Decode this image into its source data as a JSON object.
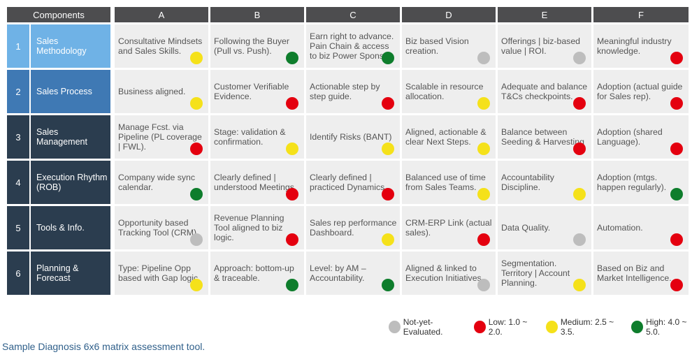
{
  "header": {
    "components_label": "Components",
    "columns": [
      "A",
      "B",
      "C",
      "D",
      "E",
      "F"
    ]
  },
  "colors": {
    "gray": "#bdbdbd",
    "red": "#e4000f",
    "yellow": "#f5e11a",
    "green": "#0e7d2c",
    "row_header_1": "#6fb2e6",
    "row_header_2": "#3f79b4",
    "row_header_dark": "#2b3d4f"
  },
  "rows": [
    {
      "num": "1",
      "label": "Sales Methodology",
      "cells": [
        {
          "text": "Consultative Mindsets and Sales Skills.",
          "rating": "yellow"
        },
        {
          "text": "Following the Buyer (Pull vs. Push).",
          "rating": "green"
        },
        {
          "text": "Earn right to advance. Pain Chain & access to biz Power Sponsor.",
          "rating": "green"
        },
        {
          "text": "Biz based Vision creation.",
          "rating": "gray"
        },
        {
          "text": "Offerings | biz-based value | ROI.",
          "rating": "gray"
        },
        {
          "text": "Meaningful industry knowledge.",
          "rating": "red"
        }
      ]
    },
    {
      "num": "2",
      "label": "Sales Process",
      "cells": [
        {
          "text": "Business aligned.",
          "rating": "yellow"
        },
        {
          "text": "Customer Verifiable Evidence.",
          "rating": "red"
        },
        {
          "text": "Actionable step by step guide.",
          "rating": "red"
        },
        {
          "text": "Scalable in resource allocation.",
          "rating": "yellow"
        },
        {
          "text": "Adequate and balance T&Cs checkpoints.",
          "rating": "red"
        },
        {
          "text": "Adoption (actual guide for Sales rep).",
          "rating": "red"
        }
      ]
    },
    {
      "num": "3",
      "label": "Sales Management",
      "cells": [
        {
          "text": "Manage Fcst. via Pipeline (PL coverage | FWL).",
          "rating": "red"
        },
        {
          "text": "Stage: validation & confirmation.",
          "rating": "yellow"
        },
        {
          "text": "Identify Risks (BANT)",
          "rating": "yellow"
        },
        {
          "text": "Aligned, actionable & clear Next Steps.",
          "rating": "yellow"
        },
        {
          "text": "Balance between Seeding & Harvesting",
          "rating": "red"
        },
        {
          "text": "Adoption (shared Language).",
          "rating": "red"
        }
      ]
    },
    {
      "num": "4",
      "label": "Execution Rhythm (ROB)",
      "cells": [
        {
          "text": "Company wide sync calendar.",
          "rating": "green"
        },
        {
          "text": "Clearly defined | understood Meetings",
          "rating": "red"
        },
        {
          "text": "Clearly defined | practiced Dynamics",
          "rating": "red"
        },
        {
          "text": "Balanced use of time from Sales Teams.",
          "rating": "yellow"
        },
        {
          "text": "Accountability Discipline.",
          "rating": "yellow"
        },
        {
          "text": "Adoption (mtgs. happen regularly).",
          "rating": "green"
        }
      ]
    },
    {
      "num": "5",
      "label": "Tools & Info.",
      "cells": [
        {
          "text": "Opportunity based Tracking Tool (CRM)",
          "rating": "gray"
        },
        {
          "text": "Revenue Planning Tool aligned to biz logic.",
          "rating": "red"
        },
        {
          "text": "Sales rep performance Dashboard.",
          "rating": "yellow"
        },
        {
          "text": "CRM-ERP Link (actual sales).",
          "rating": "red"
        },
        {
          "text": "Data Quality.",
          "rating": "gray"
        },
        {
          "text": "Automation.",
          "rating": "red"
        }
      ]
    },
    {
      "num": "6",
      "label": "Planning & Forecast",
      "cells": [
        {
          "text": "Type: Pipeline Opp based with Gap logic",
          "rating": "yellow"
        },
        {
          "text": "Approach: bottom-up & traceable.",
          "rating": "green"
        },
        {
          "text": "Level: by AM – Accountability.",
          "rating": "green"
        },
        {
          "text": "Aligned & linked to Execution Initiatives",
          "rating": "gray"
        },
        {
          "text": "Segmentation. Territory | Account Planning.",
          "rating": "yellow"
        },
        {
          "text": "Based on Biz and Market Intelligence.",
          "rating": "red"
        }
      ]
    }
  ],
  "legend": [
    {
      "label": "Not-yet-Evaluated.",
      "rating": "gray"
    },
    {
      "label": "Low: 1.0 ~ 2.0.",
      "rating": "red"
    },
    {
      "label": "Medium: 2.5 ~ 3.5.",
      "rating": "yellow"
    },
    {
      "label": "High: 4.0 ~ 5.0.",
      "rating": "green"
    }
  ],
  "caption": "Sample Diagnosis 6x6 matrix assessment tool."
}
